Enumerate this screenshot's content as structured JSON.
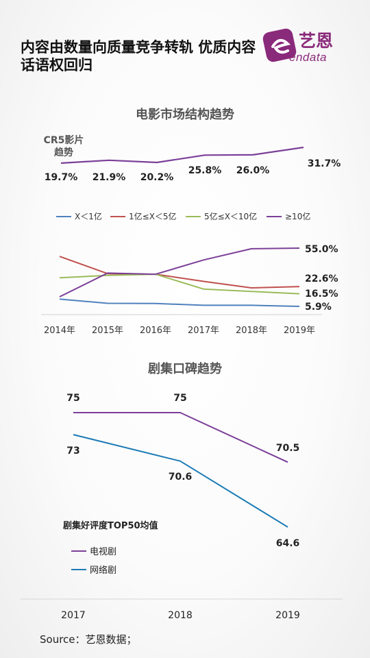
{
  "header": {
    "title": "内容由数量向质量竞争转轨  优质内容话语权回归",
    "logo_text": "艺恩",
    "logo_sub": "endata"
  },
  "colors": {
    "purple": "#7b3f98",
    "red": "#c0504d",
    "green": "#9bbb59",
    "blue": "#4f81bd",
    "drama_blue": "#1a7ab5",
    "brand": "#8a2a7a"
  },
  "source": "Source：艺恩数据；",
  "chart_data": [
    {
      "type": "line",
      "title": "电影市场结构趋势",
      "subtitle": "CR5影片趋势",
      "x": [
        "2014年",
        "2015年",
        "2016年",
        "2017年",
        "2018年",
        "2019年"
      ],
      "series": [
        {
          "name": "",
          "values": [
            19.7,
            21.9,
            20.2,
            25.8,
            26.0,
            31.7
          ],
          "labels": [
            "19.7%",
            "21.9%",
            "20.2%",
            "25.8%",
            "26.0%",
            "31.7%"
          ]
        }
      ],
      "grid": false
    },
    {
      "type": "line",
      "x": [
        "2014年",
        "2015年",
        "2016年",
        "2017年",
        "2018年",
        "2019年"
      ],
      "legend_position": "top",
      "series": [
        {
          "name": "X＜1亿",
          "values": [
            12.0,
            8.5,
            8.3,
            6.8,
            6.8,
            5.9
          ]
        },
        {
          "name": "1亿≤X＜5亿",
          "values": [
            48.0,
            33.5,
            33.0,
            27.0,
            21.5,
            22.6
          ]
        },
        {
          "name": "5亿≤X＜10亿",
          "values": [
            30.0,
            32.0,
            33.0,
            20.5,
            18.5,
            16.5
          ]
        },
        {
          "name": "≥10亿",
          "values": [
            14.0,
            34.0,
            33.0,
            45.0,
            54.5,
            55.0
          ]
        }
      ],
      "end_labels": [
        "5.9%",
        "22.6%",
        "16.5%",
        "55.0%"
      ],
      "grid": false
    },
    {
      "type": "line",
      "title": "剧集口碑趋势",
      "subtitle": "剧集好评度TOP50均值",
      "x": [
        "2017",
        "2018",
        "2019"
      ],
      "legend_position": "bottom-left",
      "series": [
        {
          "name": "电视剧",
          "values": [
            75,
            75,
            70.5
          ],
          "labels": [
            "75",
            "75",
            "70.5"
          ]
        },
        {
          "name": "网络剧",
          "values": [
            73,
            70.6,
            64.6
          ],
          "labels": [
            "73",
            "70.6",
            "64.6"
          ]
        }
      ],
      "grid": false
    }
  ]
}
